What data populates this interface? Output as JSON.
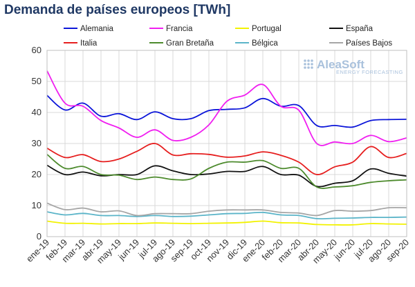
{
  "title": "Demanda de países europeos [TWh]",
  "watermark": {
    "brand": "AleaSoft",
    "tagline": "ENERGY FORECASTING"
  },
  "chart_data": {
    "type": "line",
    "ylim": [
      0,
      60
    ],
    "yticks": [
      0,
      10,
      20,
      30,
      40,
      50,
      60
    ],
    "grid": true,
    "legend_position": "top",
    "x": [
      "ene-19",
      "feb-19",
      "mar-19",
      "abr-19",
      "may-19",
      "jun-19",
      "jul-19",
      "ago-19",
      "sep-19",
      "oct-19",
      "nov-19",
      "dic-19",
      "ene-20",
      "feb-20",
      "mar-20",
      "abr-20",
      "may-20",
      "jun-20",
      "jul-20",
      "ago-20",
      "sep-20"
    ],
    "series": [
      {
        "name": "Alemania",
        "color": "#0b15d9",
        "values": [
          45.5,
          40.8,
          43.0,
          38.8,
          39.6,
          37.7,
          40.2,
          38.0,
          38.0,
          40.6,
          41.0,
          41.5,
          44.5,
          42.0,
          42.2,
          35.8,
          35.8,
          35.3,
          37.4,
          37.7,
          37.8
        ]
      },
      {
        "name": "Francia",
        "color": "#f01ef0",
        "values": [
          53.4,
          43.0,
          42.0,
          37.4,
          35.0,
          32.0,
          34.4,
          31.0,
          32.0,
          36.0,
          43.6,
          45.6,
          49.0,
          42.0,
          40.7,
          30.0,
          30.5,
          30.0,
          32.6,
          30.6,
          31.8
        ]
      },
      {
        "name": "Portugal",
        "color": "#f2f200",
        "values": [
          5.0,
          4.3,
          4.3,
          4.1,
          4.2,
          4.2,
          4.4,
          4.3,
          4.2,
          4.3,
          4.4,
          4.6,
          5.0,
          4.5,
          4.4,
          3.9,
          3.8,
          3.8,
          4.2,
          4.1,
          4.0
        ]
      },
      {
        "name": "España",
        "color": "#111111",
        "values": [
          23.0,
          20.0,
          20.8,
          19.6,
          20.0,
          20.0,
          22.8,
          21.2,
          20.0,
          20.2,
          21.0,
          21.0,
          22.6,
          20.0,
          19.8,
          16.2,
          17.2,
          18.0,
          21.8,
          20.4,
          19.5
        ]
      },
      {
        "name": "Italia",
        "color": "#e61e1e",
        "values": [
          28.5,
          25.5,
          26.4,
          24.2,
          25.0,
          27.5,
          30.0,
          26.3,
          26.7,
          26.5,
          25.6,
          26.0,
          27.3,
          26.2,
          24.0,
          20.0,
          22.5,
          24.0,
          29.0,
          25.5,
          26.8
        ]
      },
      {
        "name": "Gran Bretaña",
        "color": "#4c8a2c",
        "values": [
          26.5,
          22.0,
          22.6,
          20.0,
          19.8,
          18.4,
          19.2,
          18.4,
          18.6,
          22.0,
          24.0,
          24.0,
          24.5,
          22.0,
          22.0,
          16.0,
          16.0,
          16.4,
          17.5,
          18.0,
          18.3
        ]
      },
      {
        "name": "Bélgica",
        "color": "#5ab4c8",
        "values": [
          8.0,
          7.0,
          7.5,
          6.8,
          6.8,
          6.5,
          6.8,
          6.5,
          6.6,
          7.0,
          7.4,
          7.5,
          7.8,
          7.0,
          6.8,
          5.8,
          5.9,
          6.0,
          6.2,
          6.2,
          6.3
        ]
      },
      {
        "name": "Países Bajos",
        "color": "#a6a6a6",
        "values": [
          10.8,
          8.7,
          9.2,
          8.0,
          8.3,
          6.8,
          7.4,
          7.4,
          7.4,
          8.2,
          8.6,
          8.6,
          8.6,
          7.8,
          7.6,
          6.8,
          8.4,
          8.2,
          8.4,
          9.3,
          9.3
        ]
      }
    ]
  }
}
